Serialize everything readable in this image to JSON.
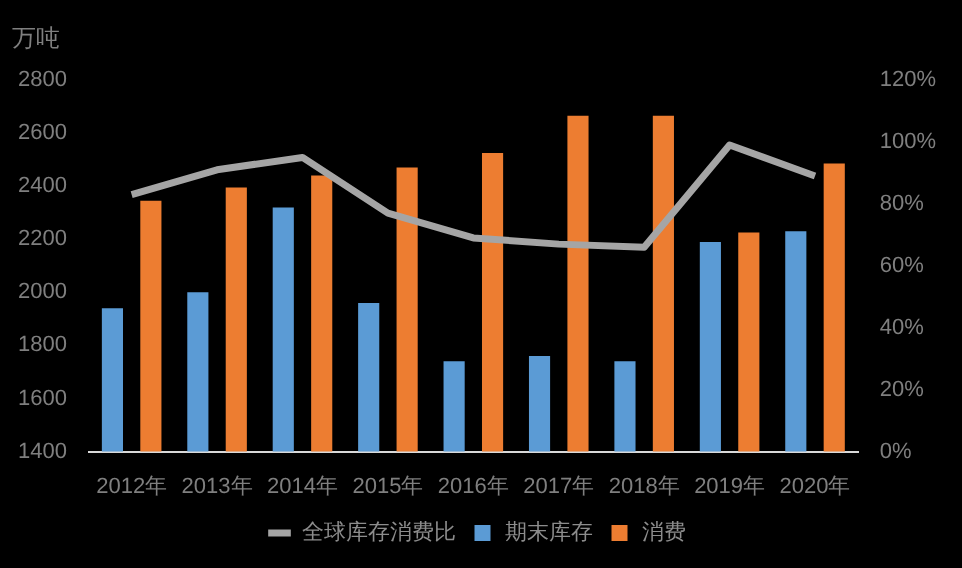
{
  "chart_data": {
    "type": "bar",
    "ylabel": "万吨",
    "categories": [
      "2012年",
      "2013年",
      "2014年",
      "2015年",
      "2016年",
      "2017年",
      "2018年",
      "2019年",
      "2020年"
    ],
    "series": [
      {
        "name": "期末库存",
        "color": "#5b9bd5",
        "values": [
          1940,
          2000,
          2320,
          1960,
          1740,
          1760,
          1740,
          2190,
          2230
        ]
      },
      {
        "name": "消费",
        "color": "#ed7d31",
        "values": [
          2345,
          2395,
          2440,
          2470,
          2525,
          2665,
          2665,
          2225,
          2485
        ]
      },
      {
        "name": "全球库存消费比",
        "type": "line",
        "axis": "y2",
        "color": "#a5a5a5",
        "values": [
          83,
          91,
          95,
          77,
          69,
          67,
          66,
          99,
          89
        ]
      }
    ],
    "ylim": [
      1400,
      2800
    ],
    "yticks": [
      1400,
      1600,
      1800,
      2000,
      2200,
      2400,
      2600,
      2800
    ],
    "y2lim": [
      0,
      120
    ],
    "y2ticks": [
      {
        "value": 0,
        "label": "0%"
      },
      {
        "value": 20,
        "label": "20%"
      },
      {
        "value": 40,
        "label": "40%"
      },
      {
        "value": 60,
        "label": "60%"
      },
      {
        "value": 80,
        "label": "80%"
      },
      {
        "value": 100,
        "label": "100%"
      },
      {
        "value": 120,
        "label": "120%"
      }
    ],
    "grid": false,
    "legend": "bottom",
    "marker": "none",
    "line_style": "solid"
  }
}
